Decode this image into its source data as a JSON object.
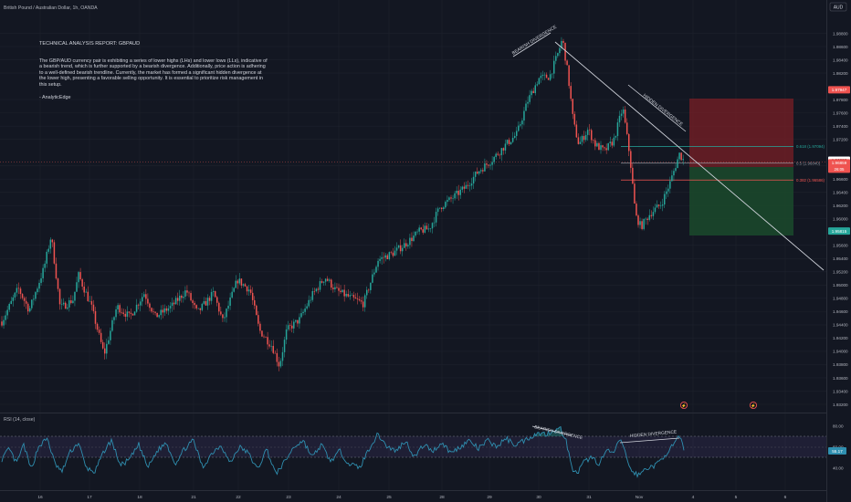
{
  "header": {
    "symbol_line": "British Pound / Australian Dollar, 1h, OANDA",
    "currency_badge": "AUD"
  },
  "report": {
    "title": "TECHNICAL ANALYSIS REPORT: GBPAUD",
    "body": "The GBP/AUD currency pair is exhibiting a series of lower highs (LHs) and lower lows (LLs), indicative of a bearish trend, which is further supported by a bearish divergence. Additionally, price action is adhering to a well-defined bearish trendline. Currently, the market has formed a significant hidden divergence at the lower high, presenting a favorable selling opportunity. It is essential to prioritize risk management in this setup.",
    "signature": "- AnalyticEdge"
  },
  "colors": {
    "background": "#131722",
    "up": "#26a69a",
    "down": "#ef5350",
    "rsi_line": "#2f8fb0",
    "rsi_band": "#7e57c2",
    "stop_zone": "#7a1f26",
    "target_zone": "#1b4a2c"
  },
  "chart_data": [
    {
      "type": "candlestick",
      "title": "",
      "symbol": "British Pound / Australian Dollar",
      "timeframe": "1h",
      "source": "OANDA",
      "x_ticks": [
        "16",
        "17",
        "18",
        "21",
        "22",
        "23",
        "24",
        "25",
        "28",
        "29",
        "30",
        "31",
        "Nov",
        "4",
        "5",
        "6"
      ],
      "y_ticks": [
        "1.98800",
        "1.98600",
        "1.98400",
        "1.98200",
        "1.97800",
        "1.97600",
        "1.97400",
        "1.97200",
        "1.96800",
        "1.96600",
        "1.96400",
        "1.96200",
        "1.96000",
        "1.95600",
        "1.95400",
        "1.95200",
        "1.95000",
        "1.94800",
        "1.94600",
        "1.94400",
        "1.94200",
        "1.94000",
        "1.93800",
        "1.93600",
        "1.93400",
        "1.93200"
      ],
      "ylim": [
        1.932,
        1.99
      ],
      "price_labels": {
        "stop": {
          "value": "1.97947",
          "y": 1.97947
        },
        "last": {
          "value": "1.96886",
          "y": 1.96886
        },
        "current": {
          "value": "1.96859",
          "y": 1.96859
        },
        "countdown": "26:05",
        "target": {
          "value": "1.95815",
          "y": 1.95815
        }
      },
      "fibonacci": [
        {
          "label": "0.618 (1.97094)",
          "value": 1.97094,
          "color": "#26a69a"
        },
        {
          "label": "0.5 (1.96840)",
          "value": 1.9684,
          "color": "#9598a1"
        },
        {
          "label": "0.382 (1.96586)",
          "value": 1.96586,
          "color": "#ef5350"
        }
      ],
      "annotations": [
        "BEARISH DIVERGENCE",
        "HIDDEN DIVERGENCE"
      ],
      "events": [
        "⚡",
        "⚡"
      ],
      "anchors": [
        {
          "x": 0,
          "y": 1.9445
        },
        {
          "x": 18,
          "y": 1.9495
        },
        {
          "x": 30,
          "y": 1.9462
        },
        {
          "x": 46,
          "y": 1.9525
        },
        {
          "x": 54,
          "y": 1.9575
        },
        {
          "x": 64,
          "y": 1.9465
        },
        {
          "x": 78,
          "y": 1.9478
        },
        {
          "x": 84,
          "y": 1.9515
        },
        {
          "x": 98,
          "y": 1.9468
        },
        {
          "x": 112,
          "y": 1.9395
        },
        {
          "x": 126,
          "y": 1.9468
        },
        {
          "x": 140,
          "y": 1.9452
        },
        {
          "x": 156,
          "y": 1.9488
        },
        {
          "x": 168,
          "y": 1.9452
        },
        {
          "x": 186,
          "y": 1.9468
        },
        {
          "x": 202,
          "y": 1.9492
        },
        {
          "x": 214,
          "y": 1.9458
        },
        {
          "x": 232,
          "y": 1.9488
        },
        {
          "x": 242,
          "y": 1.9445
        },
        {
          "x": 258,
          "y": 1.9508
        },
        {
          "x": 272,
          "y": 1.9492
        },
        {
          "x": 282,
          "y": 1.9432
        },
        {
          "x": 296,
          "y": 1.9408
        },
        {
          "x": 304,
          "y": 1.9378
        },
        {
          "x": 312,
          "y": 1.9432
        },
        {
          "x": 326,
          "y": 1.9448
        },
        {
          "x": 340,
          "y": 1.9485
        },
        {
          "x": 354,
          "y": 1.9512
        },
        {
          "x": 366,
          "y": 1.9492
        },
        {
          "x": 380,
          "y": 1.9482
        },
        {
          "x": 396,
          "y": 1.9472
        },
        {
          "x": 412,
          "y": 1.9538
        },
        {
          "x": 428,
          "y": 1.9548
        },
        {
          "x": 442,
          "y": 1.9562
        },
        {
          "x": 458,
          "y": 1.9582
        },
        {
          "x": 468,
          "y": 1.9585
        },
        {
          "x": 480,
          "y": 1.9618
        },
        {
          "x": 494,
          "y": 1.9632
        },
        {
          "x": 508,
          "y": 1.9648
        },
        {
          "x": 522,
          "y": 1.9672
        },
        {
          "x": 536,
          "y": 1.9688
        },
        {
          "x": 552,
          "y": 1.9712
        },
        {
          "x": 564,
          "y": 1.9728
        },
        {
          "x": 576,
          "y": 1.9778
        },
        {
          "x": 588,
          "y": 1.9812
        },
        {
          "x": 600,
          "y": 1.9815
        },
        {
          "x": 608,
          "y": 1.9845
        },
        {
          "x": 614,
          "y": 1.9872
        },
        {
          "x": 620,
          "y": 1.9818
        },
        {
          "x": 626,
          "y": 1.9745
        },
        {
          "x": 632,
          "y": 1.9712
        },
        {
          "x": 642,
          "y": 1.9735
        },
        {
          "x": 650,
          "y": 1.9712
        },
        {
          "x": 660,
          "y": 1.9702
        },
        {
          "x": 670,
          "y": 1.9718
        },
        {
          "x": 680,
          "y": 1.9768
        },
        {
          "x": 688,
          "y": 1.9692
        },
        {
          "x": 694,
          "y": 1.9605
        },
        {
          "x": 700,
          "y": 1.9588
        },
        {
          "x": 710,
          "y": 1.9608
        },
        {
          "x": 722,
          "y": 1.9622
        },
        {
          "x": 732,
          "y": 1.9655
        },
        {
          "x": 742,
          "y": 1.9698
        },
        {
          "x": 748,
          "y": 1.9686
        }
      ]
    },
    {
      "type": "line",
      "title": "RSI (14, close)",
      "value_label": "55.17",
      "value": 55.17,
      "y_ticks": [
        "80.00",
        "60.00",
        "40.00"
      ],
      "ylim": [
        30,
        90
      ],
      "band": [
        30,
        70
      ],
      "annotations": [
        "BEARISH DIVERGENCE",
        "HIDDEN DIVERGENCE"
      ],
      "anchors": [
        {
          "x": 0,
          "y": 48
        },
        {
          "x": 8,
          "y": 58
        },
        {
          "x": 16,
          "y": 44
        },
        {
          "x": 24,
          "y": 62
        },
        {
          "x": 32,
          "y": 38
        },
        {
          "x": 40,
          "y": 60
        },
        {
          "x": 50,
          "y": 68
        },
        {
          "x": 58,
          "y": 44
        },
        {
          "x": 66,
          "y": 36
        },
        {
          "x": 74,
          "y": 54
        },
        {
          "x": 84,
          "y": 64
        },
        {
          "x": 92,
          "y": 40
        },
        {
          "x": 102,
          "y": 36
        },
        {
          "x": 112,
          "y": 56
        },
        {
          "x": 120,
          "y": 66
        },
        {
          "x": 130,
          "y": 42
        },
        {
          "x": 140,
          "y": 48
        },
        {
          "x": 150,
          "y": 62
        },
        {
          "x": 160,
          "y": 40
        },
        {
          "x": 170,
          "y": 56
        },
        {
          "x": 180,
          "y": 64
        },
        {
          "x": 190,
          "y": 44
        },
        {
          "x": 200,
          "y": 58
        },
        {
          "x": 210,
          "y": 66
        },
        {
          "x": 220,
          "y": 40
        },
        {
          "x": 230,
          "y": 54
        },
        {
          "x": 240,
          "y": 62
        },
        {
          "x": 250,
          "y": 44
        },
        {
          "x": 260,
          "y": 60
        },
        {
          "x": 270,
          "y": 54
        },
        {
          "x": 280,
          "y": 38
        },
        {
          "x": 290,
          "y": 58
        },
        {
          "x": 300,
          "y": 34
        },
        {
          "x": 310,
          "y": 46
        },
        {
          "x": 320,
          "y": 60
        },
        {
          "x": 330,
          "y": 66
        },
        {
          "x": 340,
          "y": 50
        },
        {
          "x": 350,
          "y": 62
        },
        {
          "x": 360,
          "y": 46
        },
        {
          "x": 370,
          "y": 56
        },
        {
          "x": 380,
          "y": 44
        },
        {
          "x": 392,
          "y": 40
        },
        {
          "x": 402,
          "y": 58
        },
        {
          "x": 412,
          "y": 72
        },
        {
          "x": 422,
          "y": 60
        },
        {
          "x": 432,
          "y": 56
        },
        {
          "x": 442,
          "y": 66
        },
        {
          "x": 452,
          "y": 50
        },
        {
          "x": 462,
          "y": 62
        },
        {
          "x": 472,
          "y": 56
        },
        {
          "x": 482,
          "y": 64
        },
        {
          "x": 492,
          "y": 54
        },
        {
          "x": 502,
          "y": 60
        },
        {
          "x": 512,
          "y": 66
        },
        {
          "x": 522,
          "y": 58
        },
        {
          "x": 532,
          "y": 66
        },
        {
          "x": 542,
          "y": 60
        },
        {
          "x": 552,
          "y": 68
        },
        {
          "x": 562,
          "y": 62
        },
        {
          "x": 572,
          "y": 66
        },
        {
          "x": 580,
          "y": 70
        },
        {
          "x": 588,
          "y": 73
        },
        {
          "x": 596,
          "y": 72
        },
        {
          "x": 604,
          "y": 76
        },
        {
          "x": 612,
          "y": 77
        },
        {
          "x": 618,
          "y": 66
        },
        {
          "x": 624,
          "y": 40
        },
        {
          "x": 630,
          "y": 34
        },
        {
          "x": 638,
          "y": 46
        },
        {
          "x": 646,
          "y": 50
        },
        {
          "x": 654,
          "y": 44
        },
        {
          "x": 662,
          "y": 56
        },
        {
          "x": 670,
          "y": 54
        },
        {
          "x": 678,
          "y": 68
        },
        {
          "x": 684,
          "y": 50
        },
        {
          "x": 690,
          "y": 36
        },
        {
          "x": 698,
          "y": 33
        },
        {
          "x": 706,
          "y": 40
        },
        {
          "x": 716,
          "y": 42
        },
        {
          "x": 726,
          "y": 52
        },
        {
          "x": 736,
          "y": 62
        },
        {
          "x": 742,
          "y": 70
        },
        {
          "x": 748,
          "y": 55
        }
      ]
    }
  ]
}
